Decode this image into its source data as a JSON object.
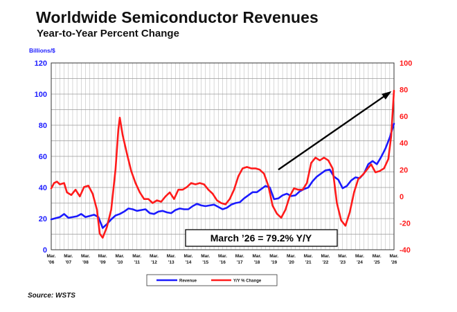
{
  "title": "Worldwide Semiconductor Revenues",
  "subtitle": "Year-to-Year Percent Change",
  "source": "Source: WSTS",
  "chart_data": {
    "type": "line",
    "ylabel_left": "Billions/$",
    "ylim_left": [
      0,
      120
    ],
    "yticks_left": [
      "0",
      "20",
      "40",
      "60",
      "80",
      "100",
      "120"
    ],
    "ylim_right": [
      -40,
      100
    ],
    "yticks_right": [
      "-40",
      "-20",
      "0",
      "20",
      "40",
      "60",
      "80",
      "100"
    ],
    "x_ticks": [
      {
        "m": "Mar.",
        "y": "'06"
      },
      {
        "m": "Mar.",
        "y": "'07"
      },
      {
        "m": "Mar.",
        "y": "'08"
      },
      {
        "m": "Mar.",
        "y": "'09"
      },
      {
        "m": "Mar.",
        "y": "'10"
      },
      {
        "m": "Mar.",
        "y": "'11"
      },
      {
        "m": "Mar.",
        "y": "'12"
      },
      {
        "m": "Mar.",
        "y": "'13"
      },
      {
        "m": "Mar.",
        "y": "'14"
      },
      {
        "m": "Mar.",
        "y": "'15"
      },
      {
        "m": "Mar.",
        "y": "'16"
      },
      {
        "m": "Mar.",
        "y": "'17"
      },
      {
        "m": "Mar.",
        "y": "'18"
      },
      {
        "m": "Mar.",
        "y": "'19"
      },
      {
        "m": "Mar.",
        "y": "'20"
      },
      {
        "m": "Mar.",
        "y": "'21"
      },
      {
        "m": "Mar.",
        "y": "'22"
      },
      {
        "m": "Mar.",
        "y": "'23"
      },
      {
        "m": "Mar.",
        "y": "'24"
      },
      {
        "m": "Mar.",
        "y": "'25"
      },
      {
        "m": "Mar.",
        "y": "'26"
      }
    ],
    "grid": true,
    "legend_position": "bottom-center",
    "series": [
      {
        "name": "Revenue",
        "axis": "left",
        "color": "#1a1aff",
        "points": [
          [
            "2006-03",
            19.5
          ],
          [
            "2006-09",
            21
          ],
          [
            "2006-12",
            23
          ],
          [
            "2007-03",
            20.5
          ],
          [
            "2007-09",
            21.5
          ],
          [
            "2007-12",
            23
          ],
          [
            "2008-03",
            21
          ],
          [
            "2008-09",
            22.5
          ],
          [
            "2008-12",
            21
          ],
          [
            "2009-03",
            14
          ],
          [
            "2009-06",
            16.5
          ],
          [
            "2009-09",
            19.5
          ],
          [
            "2009-12",
            22
          ],
          [
            "2010-03",
            23
          ],
          [
            "2010-06",
            24.5
          ],
          [
            "2010-09",
            26.5
          ],
          [
            "2010-12",
            26
          ],
          [
            "2011-03",
            25
          ],
          [
            "2011-06",
            25.5
          ],
          [
            "2011-09",
            26
          ],
          [
            "2011-12",
            23.5
          ],
          [
            "2012-03",
            23
          ],
          [
            "2012-06",
            24.5
          ],
          [
            "2012-09",
            25
          ],
          [
            "2012-12",
            24
          ],
          [
            "2013-03",
            23.5
          ],
          [
            "2013-06",
            25.5
          ],
          [
            "2013-09",
            26.5
          ],
          [
            "2013-12",
            26
          ],
          [
            "2014-03",
            26
          ],
          [
            "2014-06",
            28
          ],
          [
            "2014-09",
            29.5
          ],
          [
            "2014-12",
            28.5
          ],
          [
            "2015-03",
            28
          ],
          [
            "2015-06",
            28.5
          ],
          [
            "2015-09",
            29
          ],
          [
            "2015-12",
            27.5
          ],
          [
            "2016-03",
            26
          ],
          [
            "2016-06",
            27
          ],
          [
            "2016-09",
            29
          ],
          [
            "2016-12",
            30
          ],
          [
            "2017-03",
            30.5
          ],
          [
            "2017-06",
            33
          ],
          [
            "2017-09",
            35
          ],
          [
            "2017-12",
            37
          ],
          [
            "2018-03",
            37
          ],
          [
            "2018-06",
            39
          ],
          [
            "2018-09",
            41
          ],
          [
            "2018-12",
            40
          ],
          [
            "2019-03",
            32.5
          ],
          [
            "2019-06",
            33
          ],
          [
            "2019-09",
            35
          ],
          [
            "2019-12",
            36
          ],
          [
            "2020-03",
            34.5
          ],
          [
            "2020-06",
            35
          ],
          [
            "2020-09",
            37.5
          ],
          [
            "2020-12",
            39
          ],
          [
            "2021-03",
            40
          ],
          [
            "2021-06",
            44
          ],
          [
            "2021-09",
            47
          ],
          [
            "2021-12",
            49
          ],
          [
            "2022-03",
            51
          ],
          [
            "2022-06",
            51.5
          ],
          [
            "2022-09",
            47
          ],
          [
            "2022-12",
            45
          ],
          [
            "2023-03",
            39.5
          ],
          [
            "2023-06",
            41
          ],
          [
            "2023-09",
            44.5
          ],
          [
            "2023-12",
            46.5
          ],
          [
            "2024-03",
            46
          ],
          [
            "2024-06",
            49
          ],
          [
            "2024-09",
            55
          ],
          [
            "2024-12",
            57
          ],
          [
            "2025-03",
            55
          ],
          [
            "2025-06",
            59.5
          ],
          [
            "2025-09",
            65
          ],
          [
            "2025-12",
            72
          ],
          [
            "2026-03",
            81
          ]
        ]
      },
      {
        "name": "Y/Y % Change",
        "axis": "right",
        "color": "#ff1a1a",
        "points": [
          [
            "2006-03",
            6
          ],
          [
            "2006-05",
            10
          ],
          [
            "2006-07",
            11
          ],
          [
            "2006-09",
            9
          ],
          [
            "2006-12",
            10
          ],
          [
            "2007-02",
            3
          ],
          [
            "2007-05",
            1
          ],
          [
            "2007-08",
            5
          ],
          [
            "2007-11",
            0
          ],
          [
            "2008-02",
            7
          ],
          [
            "2008-05",
            8
          ],
          [
            "2008-08",
            2
          ],
          [
            "2008-11",
            -10
          ],
          [
            "2009-01",
            -28
          ],
          [
            "2009-03",
            -31
          ],
          [
            "2009-06",
            -23
          ],
          [
            "2009-09",
            -10
          ],
          [
            "2009-12",
            20
          ],
          [
            "2010-02",
            50
          ],
          [
            "2010-03",
            59
          ],
          [
            "2010-05",
            46
          ],
          [
            "2010-08",
            32
          ],
          [
            "2010-11",
            19
          ],
          [
            "2011-02",
            10
          ],
          [
            "2011-05",
            3
          ],
          [
            "2011-08",
            -2
          ],
          [
            "2011-11",
            -2
          ],
          [
            "2012-02",
            -5
          ],
          [
            "2012-05",
            -3
          ],
          [
            "2012-08",
            -4
          ],
          [
            "2012-11",
            0
          ],
          [
            "2013-02",
            3
          ],
          [
            "2013-05",
            -2
          ],
          [
            "2013-08",
            5
          ],
          [
            "2013-11",
            5
          ],
          [
            "2014-02",
            7
          ],
          [
            "2014-05",
            10
          ],
          [
            "2014-08",
            9
          ],
          [
            "2014-11",
            10
          ],
          [
            "2015-02",
            9
          ],
          [
            "2015-05",
            5
          ],
          [
            "2015-08",
            2
          ],
          [
            "2015-11",
            -3
          ],
          [
            "2016-02",
            -5
          ],
          [
            "2016-05",
            -6
          ],
          [
            "2016-08",
            -2
          ],
          [
            "2016-11",
            5
          ],
          [
            "2017-02",
            15
          ],
          [
            "2017-05",
            21
          ],
          [
            "2017-08",
            22
          ],
          [
            "2017-11",
            21
          ],
          [
            "2018-02",
            21
          ],
          [
            "2018-05",
            20
          ],
          [
            "2018-08",
            17
          ],
          [
            "2018-11",
            8
          ],
          [
            "2019-02",
            -7
          ],
          [
            "2019-05",
            -13
          ],
          [
            "2019-08",
            -16
          ],
          [
            "2019-11",
            -10
          ],
          [
            "2020-02",
            0
          ],
          [
            "2020-05",
            6
          ],
          [
            "2020-08",
            5
          ],
          [
            "2020-11",
            5
          ],
          [
            "2021-02",
            10
          ],
          [
            "2021-05",
            25
          ],
          [
            "2021-08",
            29
          ],
          [
            "2021-11",
            27
          ],
          [
            "2022-02",
            29
          ],
          [
            "2022-05",
            27
          ],
          [
            "2022-08",
            21
          ],
          [
            "2022-11",
            -5
          ],
          [
            "2023-02",
            -18
          ],
          [
            "2023-05",
            -22
          ],
          [
            "2023-08",
            -12
          ],
          [
            "2023-11",
            3
          ],
          [
            "2024-02",
            13
          ],
          [
            "2024-05",
            16
          ],
          [
            "2024-08",
            20
          ],
          [
            "2024-11",
            24
          ],
          [
            "2025-02",
            18
          ],
          [
            "2025-05",
            19
          ],
          [
            "2025-08",
            21
          ],
          [
            "2025-11",
            28
          ],
          [
            "2026-01",
            45
          ],
          [
            "2026-03",
            79.2
          ]
        ]
      }
    ],
    "annotation": {
      "text": "March ’26 = 79.2% Y/Y",
      "arrow_from": [
        "2019-06",
        20
      ],
      "arrow_to": [
        "2026-03",
        80
      ]
    }
  }
}
